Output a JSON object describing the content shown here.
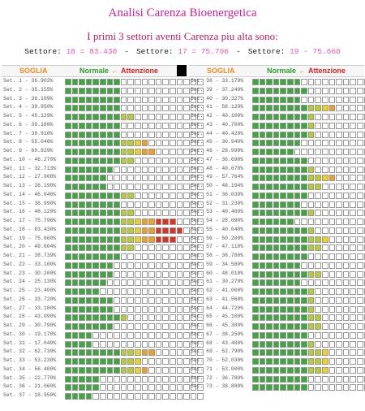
{
  "title": "Analisi Carenza Bioenergetica",
  "subtitle": "I primi 3 settori aventi Carenza piu alta sono:",
  "top_sectors": [
    {
      "prefix": "Settore:",
      "text": "18 = 83.430"
    },
    {
      "prefix": "Settore:",
      "text": "17 = 75.796"
    },
    {
      "prefix": "Settore:",
      "text": "19 - 75.660"
    }
  ],
  "separator": "-",
  "header": {
    "soglia": "SOGLIA",
    "normale": "Normale",
    "arrow": "←",
    "attenzione": "Attenzione"
  },
  "bar_range": [
    0,
    100
  ],
  "columns": [
    {
      "rows": [
        {
          "label": "Set. 1 - 36.902%",
          "value": 36.902
        },
        {
          "label": "Set. 2 - 35.155%",
          "value": 35.155
        },
        {
          "label": "Set. 3 - 36.109%",
          "value": 36.109
        },
        {
          "label": "Set. 4 - 39.950%",
          "value": 39.95
        },
        {
          "label": "Set. 5 - 45.129%",
          "value": 45.129
        },
        {
          "label": "Set. 6 - 39.180%",
          "value": 39.18
        },
        {
          "label": "Set. 7 - 38.910%",
          "value": 38.91
        },
        {
          "label": "Set. 8 - 55.046%",
          "value": 55.046
        },
        {
          "label": "Set. 9 - 60.929%",
          "value": 60.929
        },
        {
          "label": "Set. 10 - 46.270%",
          "value": 46.27
        },
        {
          "label": "Set. 11 - 32.713%",
          "value": 32.713
        },
        {
          "label": "Set. 12 - 27.008%",
          "value": 27.008
        },
        {
          "label": "Set. 13 - 26.190%",
          "value": 26.19
        },
        {
          "label": "Set. 14 - 46.046%",
          "value": 46.046
        },
        {
          "label": "Set. 15 - 36.990%",
          "value": 36.99
        },
        {
          "label": "Set. 16 - 48.120%",
          "value": 48.12
        },
        {
          "label": "Set. 17 - 75.796%",
          "value": 75.796
        },
        {
          "label": "Set. 18 - 83.430%",
          "value": 83.43
        },
        {
          "label": "Set. 19 - 75.660%",
          "value": 75.66
        },
        {
          "label": "Set. 20 - 49.604%",
          "value": 49.604
        },
        {
          "label": "Set. 21 - 38.739%",
          "value": 38.739
        },
        {
          "label": "Set. 22 - 33.100%",
          "value": 33.1
        },
        {
          "label": "Set. 23 - 30.200%",
          "value": 30.2
        },
        {
          "label": "Set. 24 - 25.130%",
          "value": 25.13
        },
        {
          "label": "Set. 25 - 23.400%",
          "value": 23.4
        },
        {
          "label": "Set. 26 - 33.720%",
          "value": 33.72
        },
        {
          "label": "Set. 27 - 33.180%",
          "value": 33.18
        },
        {
          "label": "Set. 28 - 43.090%",
          "value": 43.09
        },
        {
          "label": "Set. 29 - 30.790%",
          "value": 30.79
        },
        {
          "label": "Set. 30 - 19.178%",
          "value": 19.178
        },
        {
          "label": "Set. 31 - 17.040%",
          "value": 17.04
        },
        {
          "label": "Set. 32 - 62.730%",
          "value": 62.73
        },
        {
          "label": "Set. 33 - 53.230%",
          "value": 53.23
        },
        {
          "label": "Set. 34 - 56.400%",
          "value": 56.4
        },
        {
          "label": "Set. 35 - 22.770%",
          "value": 22.77
        },
        {
          "label": "Set. 36 - 21.060%",
          "value": 21.06
        },
        {
          "label": "Set. 37 - 18.950%",
          "value": 18.95
        }
      ]
    },
    {
      "rows": [
        {
          "label": "Set. 38 - 33.179%",
          "value": 33.179
        },
        {
          "label": "Set. 39 - 37.240%",
          "value": 37.24
        },
        {
          "label": "Set. 40 - 30.327%",
          "value": 30.327
        },
        {
          "label": "Set. 41 - 58.129%",
          "value": 58.129
        },
        {
          "label": "Set. 42 - 40.100%",
          "value": 40.1
        },
        {
          "label": "Set. 43 - 40.700%",
          "value": 40.7
        },
        {
          "label": "Set. 44 - 40.420%",
          "value": 40.42
        },
        {
          "label": "Set. 45 - 30.940%",
          "value": 30.94
        },
        {
          "label": "Set. 46 - 28.990%",
          "value": 28.99
        },
        {
          "label": "Set. 47 - 36.690%",
          "value": 36.69
        },
        {
          "label": "Set. 48 - 40.670%",
          "value": 40.67
        },
        {
          "label": "Set. 49 - 57.764%",
          "value": 57.764
        },
        {
          "label": "Set. 50 - 48.194%",
          "value": 48.194
        },
        {
          "label": "Set. 51 - 36.039%",
          "value": 36.039
        },
        {
          "label": "Set. 52 - 31.230%",
          "value": 31.23
        },
        {
          "label": "Set. 53 - 40.460%",
          "value": 40.46
        },
        {
          "label": "Set. 54 - 28.090%",
          "value": 28.09
        },
        {
          "label": "Set. 55 - 40.040%",
          "value": 40.04
        },
        {
          "label": "Set. 56 - 50.200%",
          "value": 50.2
        },
        {
          "label": "Set. 57 - 47.110%",
          "value": 47.11
        },
        {
          "label": "Set. 58 - 38.780%",
          "value": 38.78
        },
        {
          "label": "Set. 59 - 34.580%",
          "value": 34.58
        },
        {
          "label": "Set. 60 - 48.010%",
          "value": 48.01
        },
        {
          "label": "Set. 61 - 30.270%",
          "value": 30.27
        },
        {
          "label": "Set. 62 - 41.000%",
          "value": 41.0
        },
        {
          "label": "Set. 63 - 41.560%",
          "value": 41.56
        },
        {
          "label": "Set. 64 - 44.720%",
          "value": 44.72
        },
        {
          "label": "Set. 65 - 45.100%",
          "value": 45.1
        },
        {
          "label": "Set. 66 - 45.300%",
          "value": 45.3
        },
        {
          "label": "Set. 67 - 38.250%",
          "value": 38.25
        },
        {
          "label": "Set. 68 - 43.400%",
          "value": 43.4
        },
        {
          "label": "Set. 69 - 52.790%",
          "value": 52.79
        },
        {
          "label": "Set. 70 - 52.030%",
          "value": 52.03
        },
        {
          "label": "Set. 71 - 53.000%",
          "value": 53.0
        },
        {
          "label": "Set. 72 - 36.780%",
          "value": 36.78
        },
        {
          "label": "Set. 73 - 38.880%",
          "value": 38.88
        }
      ]
    }
  ]
}
